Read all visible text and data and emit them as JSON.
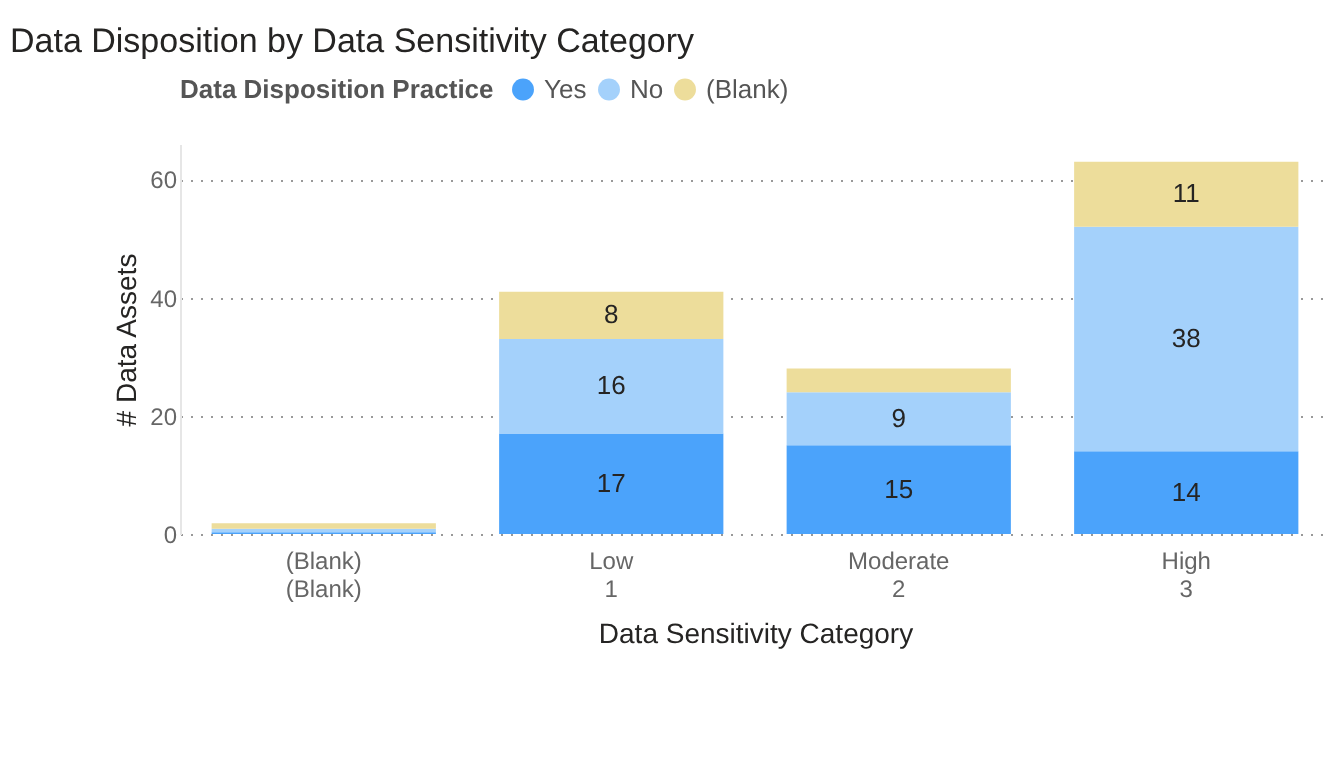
{
  "chart_data": {
    "type": "bar",
    "title": "Data Disposition by Data Sensitivity Category",
    "xlabel": "Data Sensitivity Category",
    "ylabel": "# Data Assets",
    "legend_title": "Data Disposition Practice",
    "categories": [
      "(Blank)\n(Blank)",
      "Low\n1",
      "Moderate\n2",
      "High\n3"
    ],
    "series": [
      {
        "name": "Yes",
        "color": "#4ba3fb",
        "values": [
          0.3,
          17,
          15,
          14
        ],
        "value_labels": [
          null,
          "17",
          "15",
          "14"
        ]
      },
      {
        "name": "No",
        "color": "#a4d1fb",
        "values": [
          0.6,
          16,
          9,
          38
        ],
        "value_labels": [
          null,
          "16",
          "9",
          "38"
        ]
      },
      {
        "name": "(Blank)",
        "color": "#eddd9b",
        "values": [
          0.9,
          8,
          4,
          11
        ],
        "value_labels": [
          null,
          "8",
          null,
          "11"
        ]
      }
    ],
    "stacked": true,
    "ylim": [
      0,
      66
    ],
    "yticks": [
      0,
      20,
      40,
      60
    ],
    "grid": "y",
    "legend": "top"
  }
}
